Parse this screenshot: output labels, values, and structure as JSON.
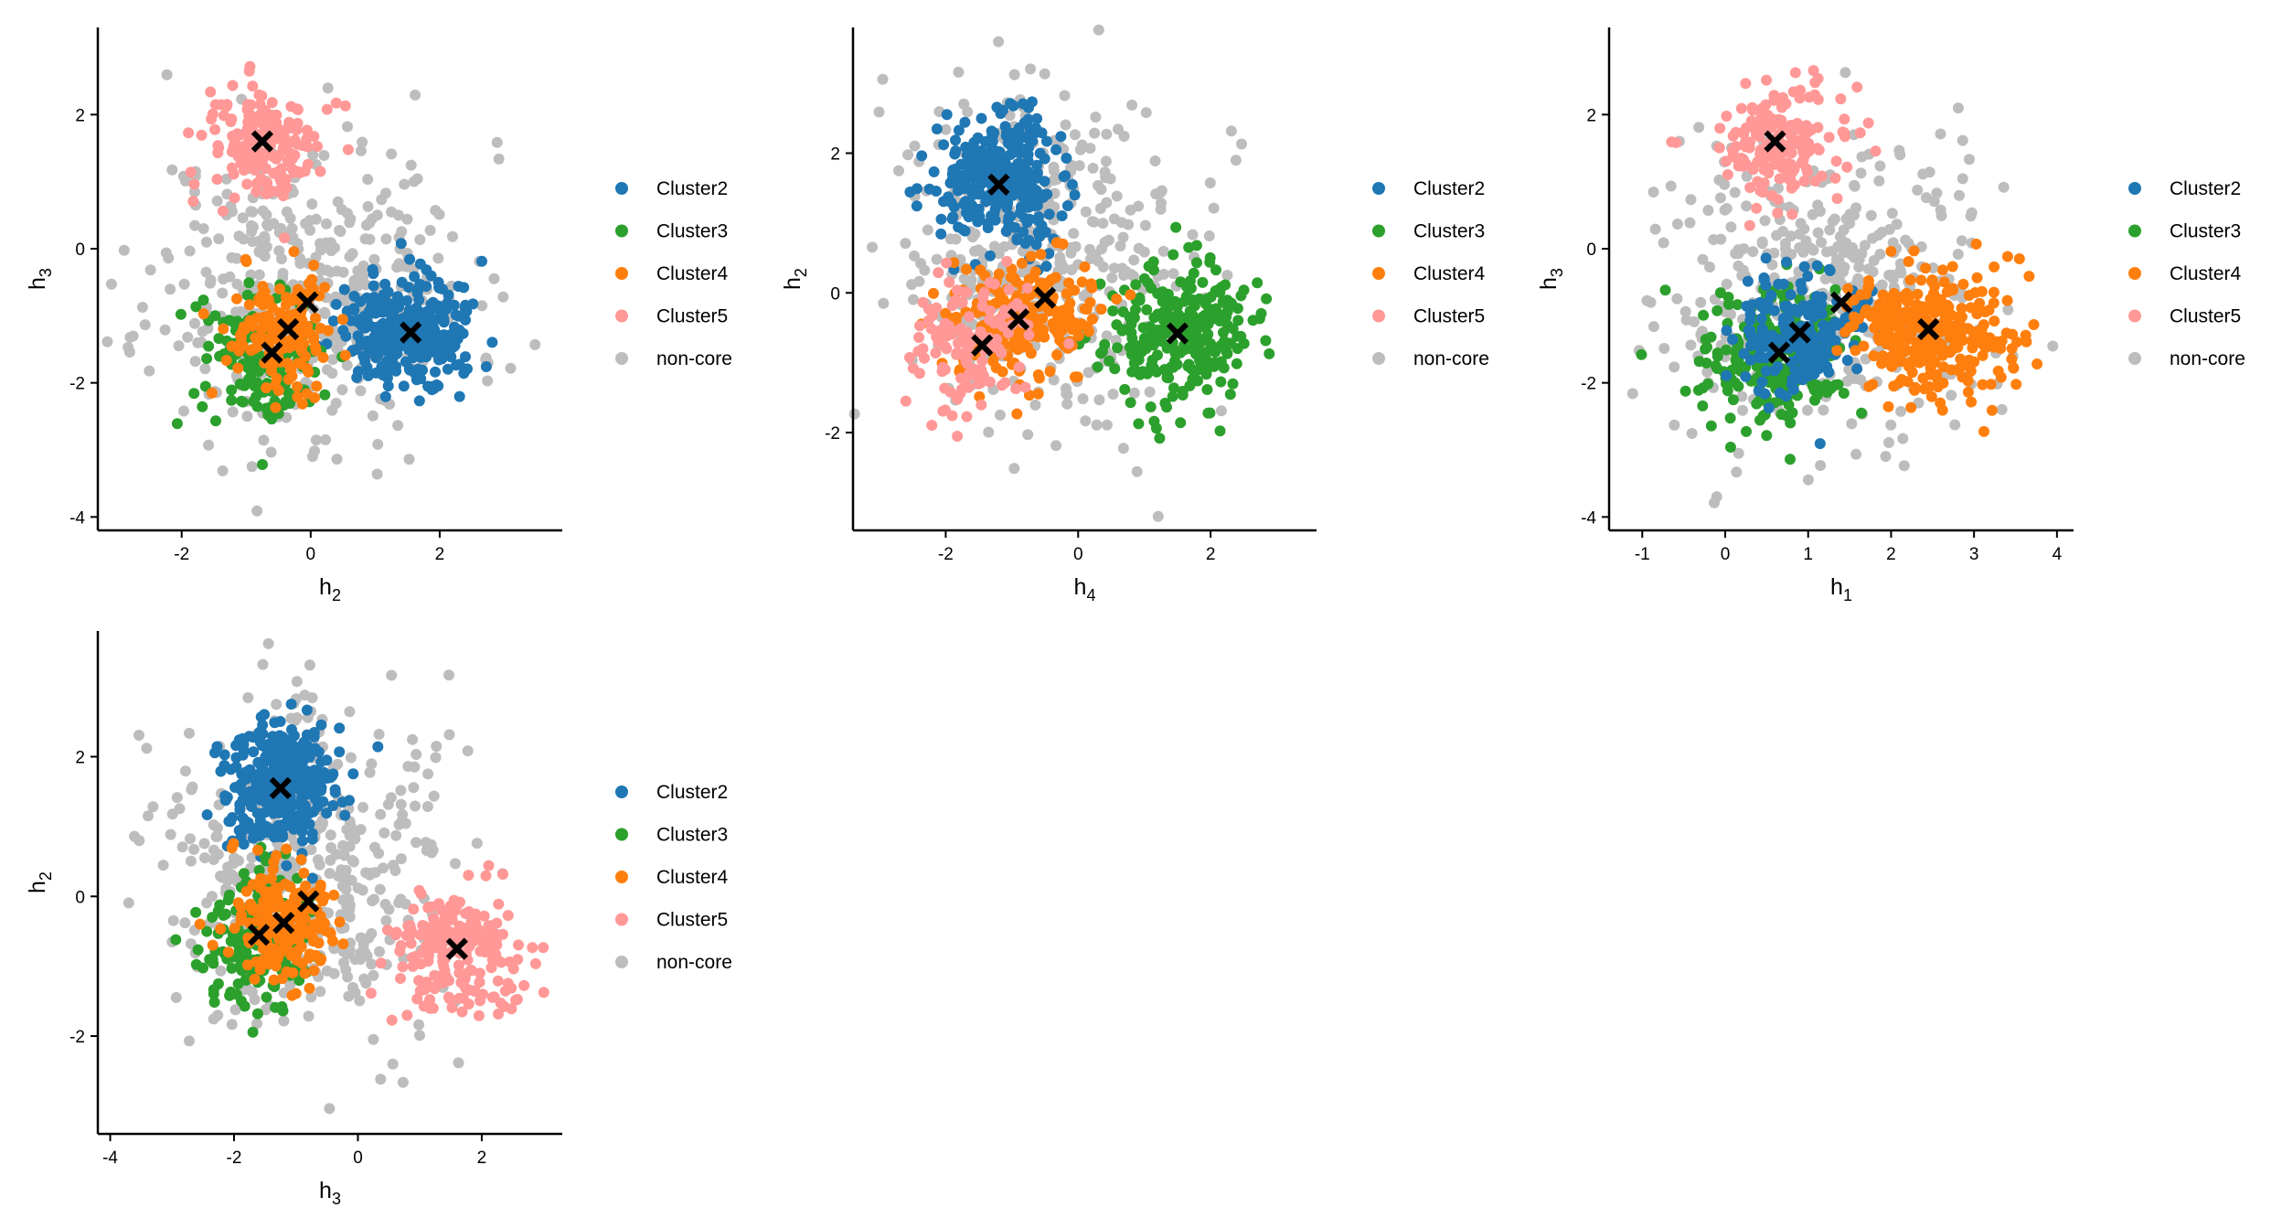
{
  "colors": {
    "Cluster2": "#1f77b4",
    "Cluster3": "#2ca02c",
    "Cluster4": "#ff7f0e",
    "Cluster5": "#ff9896",
    "non-core": "#bdbdbd",
    "centroid": "#000000"
  },
  "legend": [
    "Cluster2",
    "Cluster3",
    "Cluster4",
    "Cluster5",
    "non-core"
  ],
  "chart_data": [
    {
      "type": "scatter",
      "xlabel": {
        "base": "h",
        "sub": "2"
      },
      "ylabel": {
        "base": "h",
        "sub": "3"
      },
      "xlim": [
        -3.3,
        3.9
      ],
      "ylim": [
        -4.2,
        3.3
      ],
      "xticks": [
        "-2",
        "0",
        "2"
      ],
      "xtick_values": [
        -2,
        0,
        2
      ],
      "yticks": [
        "-4",
        "-2",
        "0",
        "2"
      ],
      "ytick_values": [
        -4,
        -2,
        0,
        2
      ],
      "legend_position": "right",
      "grid": false,
      "clusters": [
        {
          "name": "non-core",
          "center": [
            0.0,
            -0.6
          ],
          "spread": [
            1.25,
            1.1
          ],
          "count": 420,
          "seed": 11
        },
        {
          "name": "Cluster5",
          "center": [
            -0.7,
            1.55
          ],
          "spread": [
            0.45,
            0.45
          ],
          "count": 170,
          "seed": 12
        },
        {
          "name": "Cluster2",
          "center": [
            1.55,
            -1.25
          ],
          "spread": [
            0.5,
            0.4
          ],
          "count": 320,
          "seed": 13
        },
        {
          "name": "Cluster3",
          "center": [
            -0.7,
            -1.6
          ],
          "spread": [
            0.45,
            0.5
          ],
          "count": 150,
          "seed": 14
        },
        {
          "name": "Cluster4",
          "center": [
            -0.4,
            -1.2
          ],
          "spread": [
            0.4,
            0.45
          ],
          "count": 150,
          "seed": 15
        }
      ],
      "centroids": [
        [
          -0.75,
          1.6
        ],
        [
          1.55,
          -1.25
        ],
        [
          -0.6,
          -1.55
        ],
        [
          -0.35,
          -1.2
        ],
        [
          -0.05,
          -0.8
        ]
      ]
    },
    {
      "type": "scatter",
      "xlabel": {
        "base": "h",
        "sub": "4"
      },
      "ylabel": {
        "base": "h",
        "sub": "2"
      },
      "xlim": [
        -3.4,
        3.6
      ],
      "ylim": [
        -3.4,
        3.8
      ],
      "xticks": [
        "-2",
        "0",
        "2"
      ],
      "xtick_values": [
        -2,
        0,
        2
      ],
      "yticks": [
        "-2",
        "0",
        "2"
      ],
      "ytick_values": [
        -2,
        0,
        2
      ],
      "legend_position": "right",
      "grid": false,
      "clusters": [
        {
          "name": "non-core",
          "center": [
            -0.5,
            0.5
          ],
          "spread": [
            1.2,
            1.2
          ],
          "count": 420,
          "seed": 21
        },
        {
          "name": "Cluster2",
          "center": [
            -1.2,
            1.6
          ],
          "spread": [
            0.45,
            0.45
          ],
          "count": 320,
          "seed": 22
        },
        {
          "name": "Cluster3",
          "center": [
            1.5,
            -0.6
          ],
          "spread": [
            0.55,
            0.5
          ],
          "count": 280,
          "seed": 23
        },
        {
          "name": "Cluster4",
          "center": [
            -0.9,
            -0.4
          ],
          "spread": [
            0.55,
            0.45
          ],
          "count": 230,
          "seed": 24
        },
        {
          "name": "Cluster5",
          "center": [
            -1.6,
            -0.8
          ],
          "spread": [
            0.45,
            0.45
          ],
          "count": 130,
          "seed": 25
        }
      ],
      "centroids": [
        [
          -1.2,
          1.55
        ],
        [
          1.5,
          -0.58
        ],
        [
          -0.9,
          -0.38
        ],
        [
          -1.45,
          -0.75
        ],
        [
          -0.5,
          -0.07
        ]
      ]
    },
    {
      "type": "scatter",
      "xlabel": {
        "base": "h",
        "sub": "1"
      },
      "ylabel": {
        "base": "h",
        "sub": "3"
      },
      "xlim": [
        -1.4,
        4.2
      ],
      "ylim": [
        -4.2,
        3.3
      ],
      "xticks": [
        "-1",
        "0",
        "1",
        "2",
        "3",
        "4"
      ],
      "xtick_values": [
        -1,
        0,
        1,
        2,
        3,
        4
      ],
      "yticks": [
        "-4",
        "-2",
        "0",
        "2"
      ],
      "ytick_values": [
        -4,
        -2,
        0,
        2
      ],
      "legend_position": "right",
      "grid": false,
      "clusters": [
        {
          "name": "non-core",
          "center": [
            1.2,
            -0.6
          ],
          "spread": [
            1.0,
            1.1
          ],
          "count": 420,
          "seed": 31
        },
        {
          "name": "Cluster5",
          "center": [
            0.6,
            1.6
          ],
          "spread": [
            0.45,
            0.45
          ],
          "count": 170,
          "seed": 32
        },
        {
          "name": "Cluster3",
          "center": [
            0.6,
            -1.6
          ],
          "spread": [
            0.45,
            0.5
          ],
          "count": 220,
          "seed": 33
        },
        {
          "name": "Cluster2",
          "center": [
            0.9,
            -1.3
          ],
          "spread": [
            0.4,
            0.45
          ],
          "count": 200,
          "seed": 34
        },
        {
          "name": "Cluster4",
          "center": [
            2.5,
            -1.25
          ],
          "spread": [
            0.5,
            0.5
          ],
          "count": 320,
          "seed": 35
        }
      ],
      "centroids": [
        [
          0.6,
          1.6
        ],
        [
          0.65,
          -1.55
        ],
        [
          0.9,
          -1.25
        ],
        [
          1.4,
          -0.8
        ],
        [
          2.45,
          -1.2
        ]
      ]
    },
    {
      "type": "scatter",
      "xlabel": {
        "base": "h",
        "sub": "3"
      },
      "ylabel": {
        "base": "h",
        "sub": "2"
      },
      "xlim": [
        -4.2,
        3.3
      ],
      "ylim": [
        -3.4,
        3.8
      ],
      "xticks": [
        "-4",
        "-2",
        "0",
        "2"
      ],
      "xtick_values": [
        -4,
        -2,
        0,
        2
      ],
      "yticks": [
        "-2",
        "0",
        "2"
      ],
      "ytick_values": [
        -2,
        0,
        2
      ],
      "legend_position": "right",
      "grid": false,
      "clusters": [
        {
          "name": "non-core",
          "center": [
            -0.8,
            0.4
          ],
          "spread": [
            1.2,
            1.2
          ],
          "count": 420,
          "seed": 41
        },
        {
          "name": "Cluster2",
          "center": [
            -1.25,
            1.6
          ],
          "spread": [
            0.45,
            0.5
          ],
          "count": 320,
          "seed": 42
        },
        {
          "name": "Cluster3",
          "center": [
            -1.6,
            -0.6
          ],
          "spread": [
            0.45,
            0.5
          ],
          "count": 200,
          "seed": 43
        },
        {
          "name": "Cluster4",
          "center": [
            -1.2,
            -0.4
          ],
          "spread": [
            0.45,
            0.45
          ],
          "count": 200,
          "seed": 44
        },
        {
          "name": "Cluster5",
          "center": [
            1.6,
            -0.75
          ],
          "spread": [
            0.55,
            0.45
          ],
          "count": 200,
          "seed": 45
        }
      ],
      "centroids": [
        [
          -1.25,
          1.55
        ],
        [
          -1.6,
          -0.55
        ],
        [
          -1.2,
          -0.38
        ],
        [
          1.6,
          -0.75
        ],
        [
          -0.8,
          -0.07
        ]
      ]
    }
  ]
}
